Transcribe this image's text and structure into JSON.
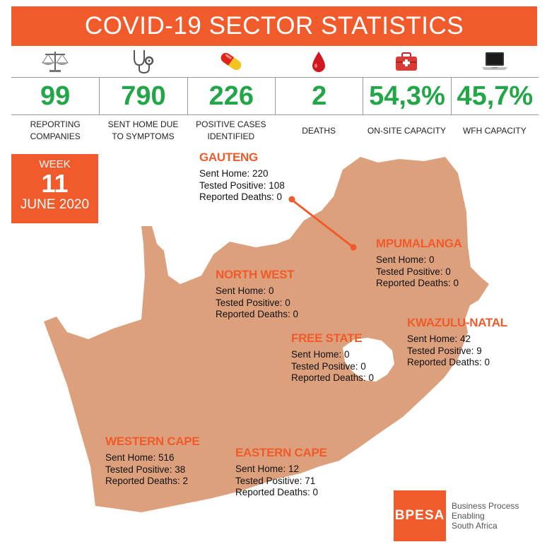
{
  "title": "COVID-19 SECTOR STATISTICS",
  "stats": [
    {
      "icon": "scales-icon",
      "value": "99",
      "label": "REPORTING COMPANIES"
    },
    {
      "icon": "stethoscope-icon",
      "value": "790",
      "label": "SENT HOME DUE TO SYMPTOMS"
    },
    {
      "icon": "pill-icon",
      "value": "226",
      "label": "POSITIVE CASES IDENTIFIED"
    },
    {
      "icon": "blood-drop-icon",
      "value": "2",
      "label": "DEATHS"
    },
    {
      "icon": "first-aid-kit-icon",
      "value": "54,3%",
      "label": "ON-SITE CAPACITY"
    },
    {
      "icon": "laptop-icon",
      "value": "45,7%",
      "label": "WFH CAPACITY"
    }
  ],
  "week": {
    "label": "WEEK",
    "number": "11",
    "month": "JUNE 2020"
  },
  "provinces": {
    "gauteng": {
      "name": "GAUTENG",
      "sent": "Sent Home: 220",
      "positive": "Tested Positive: 108",
      "deaths": "Reported Deaths: 0"
    },
    "mpumalanga": {
      "name": "MPUMALANGA",
      "sent": "Sent Home: 0",
      "positive": "Tested Positive: 0",
      "deaths": "Reported Deaths: 0"
    },
    "north_west": {
      "name": "NORTH WEST",
      "sent": "Sent Home: 0",
      "positive": "Tested Positive: 0",
      "deaths": "Reported Deaths: 0"
    },
    "kwazulu_natal": {
      "name": "KWAZULU-NATAL",
      "sent": "Sent Home: 42",
      "positive": "Tested Positive: 9",
      "deaths": "Reported Deaths: 0"
    },
    "free_state": {
      "name": "FREE STATE",
      "sent": "Sent Home: 0",
      "positive": "Tested Positive: 0",
      "deaths": "Reported Deaths: 0"
    },
    "western_cape": {
      "name": "WESTERN CAPE",
      "sent": "Sent Home: 516",
      "positive": "Tested Positive: 38",
      "deaths": "Reported Deaths: 2"
    },
    "eastern_cape": {
      "name": "EASTERN CAPE",
      "sent": "Sent Home: 12",
      "positive": "Tested Positive: 71",
      "deaths": "Reported Deaths: 0"
    }
  },
  "logo": {
    "badge": "BPESA",
    "line1": "Business Process",
    "line2": "Enabling",
    "line3": "South Africa"
  },
  "colors": {
    "accent": "#f15a2b",
    "value_green": "#22a647",
    "map_fill": "#dca07c"
  }
}
